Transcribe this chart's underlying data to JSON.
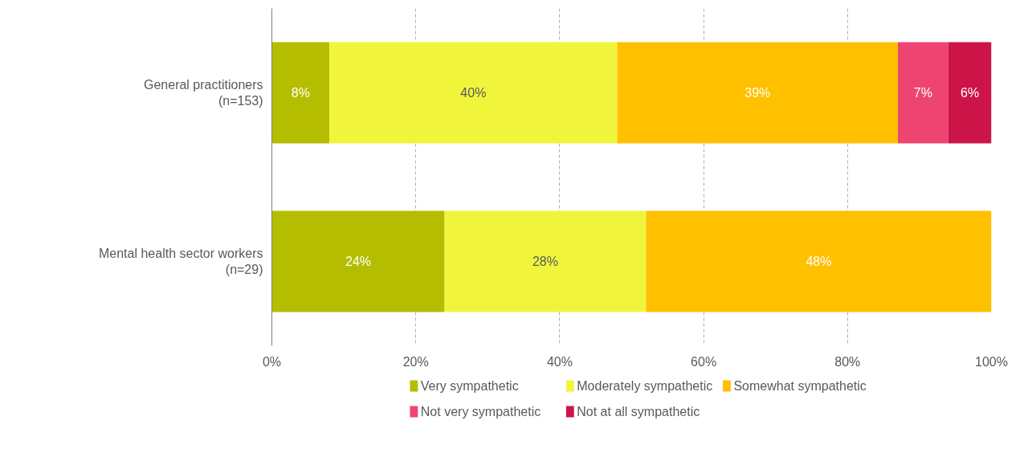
{
  "chart_data": {
    "type": "bar",
    "orientation": "horizontal",
    "stacked": true,
    "categories": [
      "General practitioners\n(n=153)",
      "Mental health sector workers\n(n=29)"
    ],
    "series": [
      {
        "name": "Very sympathetic",
        "color": "#b5bd00",
        "values": [
          8,
          24
        ],
        "value_labels": [
          "8%",
          "24%"
        ]
      },
      {
        "name": "Moderately sympathetic",
        "color": "#f0f53c",
        "values": [
          40,
          28
        ],
        "value_labels": [
          "40%",
          "28%"
        ]
      },
      {
        "name": "Somewhat sympathetic",
        "color": "#ffc000",
        "values": [
          39,
          48
        ],
        "value_labels": [
          "39%",
          "48%"
        ]
      },
      {
        "name": "Not very sympathetic",
        "color": "#ee4472",
        "values": [
          7,
          null
        ],
        "value_labels": [
          "7%",
          null
        ]
      },
      {
        "name": "Not at all sympathetic",
        "color": "#cc1448",
        "values": [
          6,
          null
        ],
        "value_labels": [
          "6%",
          null
        ]
      }
    ],
    "xlim": [
      0,
      100
    ],
    "xticks": [
      {
        "value": 0,
        "label": "0%"
      },
      {
        "value": 20,
        "label": "20%"
      },
      {
        "value": 40,
        "label": "40%"
      },
      {
        "value": 60,
        "label": "60%"
      },
      {
        "value": 80,
        "label": "80%"
      },
      {
        "value": 100,
        "label": "100%"
      }
    ],
    "grid": "x",
    "legend": "bottom"
  }
}
